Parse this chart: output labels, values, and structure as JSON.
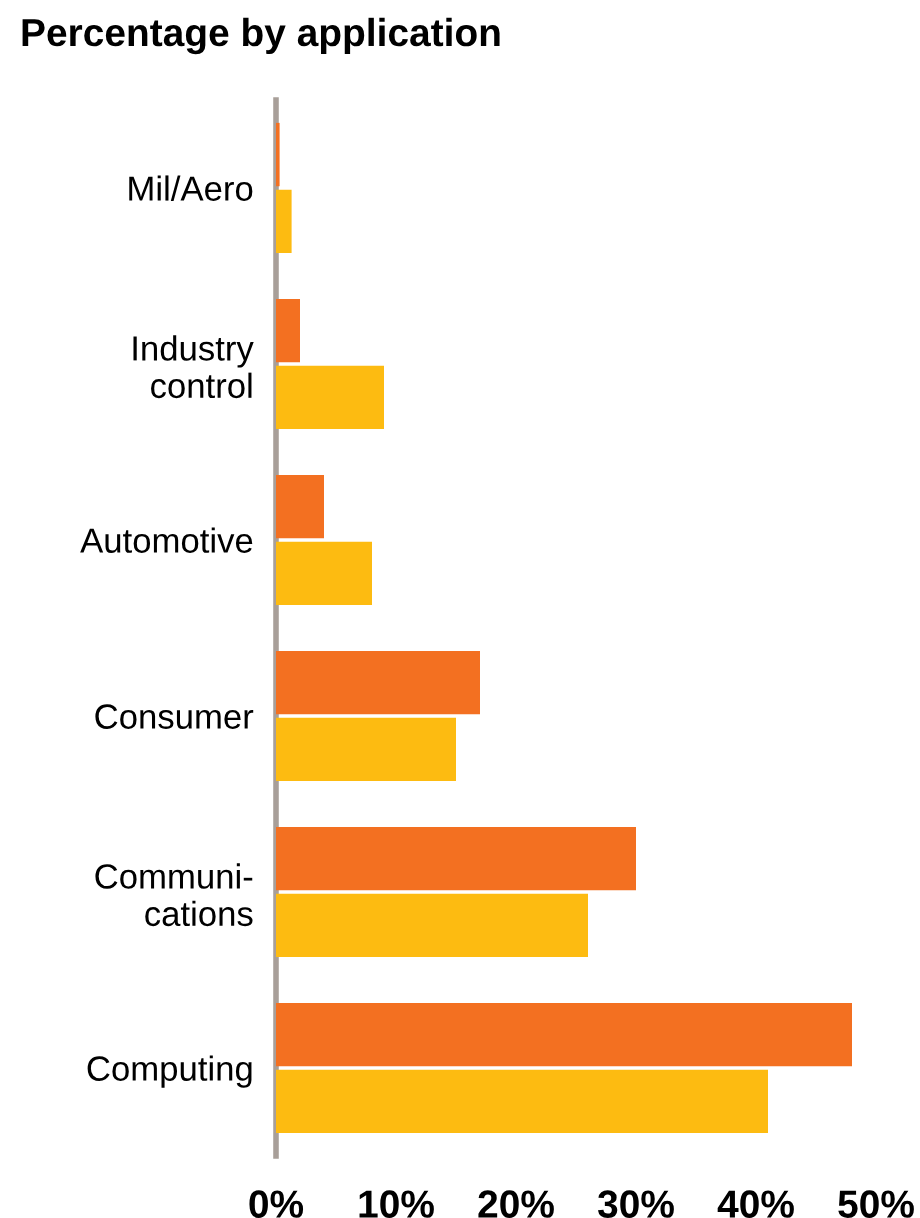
{
  "chart_data": {
    "type": "bar",
    "orientation": "horizontal",
    "title": "Percentage by application",
    "categories": [
      "Mil/Aero",
      "Industry\ncontrol",
      "Automotive",
      "Consumer",
      "Communi-\ncations",
      "Computing"
    ],
    "series": [
      {
        "color": "#f37021",
        "values": [
          0.3,
          2,
          4,
          17,
          30,
          48
        ]
      },
      {
        "color": "#fdbb11",
        "values": [
          1.3,
          9,
          8,
          15,
          26,
          41
        ]
      }
    ],
    "xlim": [
      0,
      50
    ],
    "xticks": [
      {
        "value": 0,
        "label": "0%"
      },
      {
        "value": 10,
        "label": "10%"
      },
      {
        "value": 20,
        "label": "20%"
      },
      {
        "value": 30,
        "label": "30%"
      },
      {
        "value": 40,
        "label": "40%"
      },
      {
        "value": 50,
        "label": "50%"
      }
    ],
    "grid": false,
    "legend": false
  }
}
